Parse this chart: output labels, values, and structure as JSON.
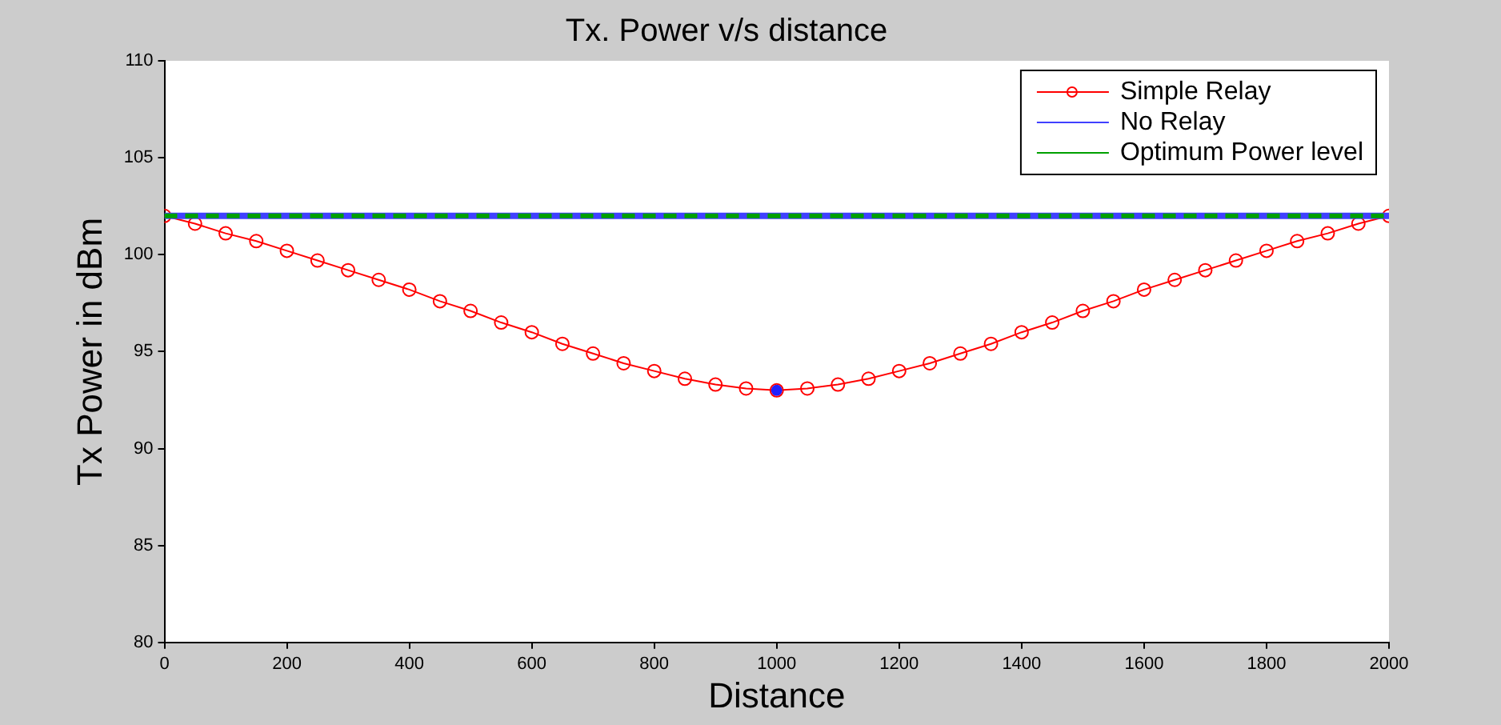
{
  "chart_data": {
    "type": "line",
    "title": "Tx. Power v/s distance",
    "xlabel": "Distance",
    "ylabel": "Tx Power in dBm",
    "xlim": [
      0,
      2000
    ],
    "xticks": [
      0,
      200,
      400,
      600,
      800,
      1000,
      1200,
      1400,
      1600,
      1800,
      2000
    ],
    "ylim": [
      80,
      110
    ],
    "yticks": [
      80,
      85,
      90,
      95,
      100,
      105,
      110
    ],
    "grid": false,
    "legend": "top right",
    "series": [
      {
        "name": "Simple Relay",
        "color": "#ff0000",
        "marker": "circle",
        "x": [
          0,
          50,
          100,
          150,
          200,
          250,
          300,
          350,
          400,
          450,
          500,
          550,
          600,
          650,
          700,
          750,
          800,
          850,
          900,
          950,
          1000,
          1050,
          1100,
          1150,
          1200,
          1250,
          1300,
          1350,
          1400,
          1450,
          1500,
          1550,
          1600,
          1650,
          1700,
          1750,
          1800,
          1850,
          1900,
          1950,
          2000
        ],
        "values": [
          102,
          101.6,
          101.1,
          100.7,
          100.2,
          99.7,
          99.2,
          98.7,
          98.2,
          97.6,
          97.1,
          96.5,
          96.0,
          95.4,
          94.9,
          94.4,
          94.0,
          93.6,
          93.3,
          93.1,
          93.0,
          93.1,
          93.3,
          93.6,
          94.0,
          94.4,
          94.9,
          95.4,
          96.0,
          96.5,
          97.1,
          97.6,
          98.2,
          98.7,
          99.2,
          99.7,
          100.2,
          100.7,
          101.1,
          101.6,
          102
        ]
      },
      {
        "name": "No Relay",
        "color": "#4040ff",
        "marker": "none",
        "x": [
          0,
          2000
        ],
        "values": [
          102,
          102
        ]
      },
      {
        "name": "Optimum Power level",
        "color": "#00a000",
        "marker": "none",
        "line_style": "dashed",
        "x": [
          0,
          2000
        ],
        "values": [
          102,
          102
        ]
      },
      {
        "type": "scatter",
        "color": "#2020ff",
        "marker": "circle",
        "x": [
          1000
        ],
        "values": [
          93
        ]
      }
    ]
  }
}
